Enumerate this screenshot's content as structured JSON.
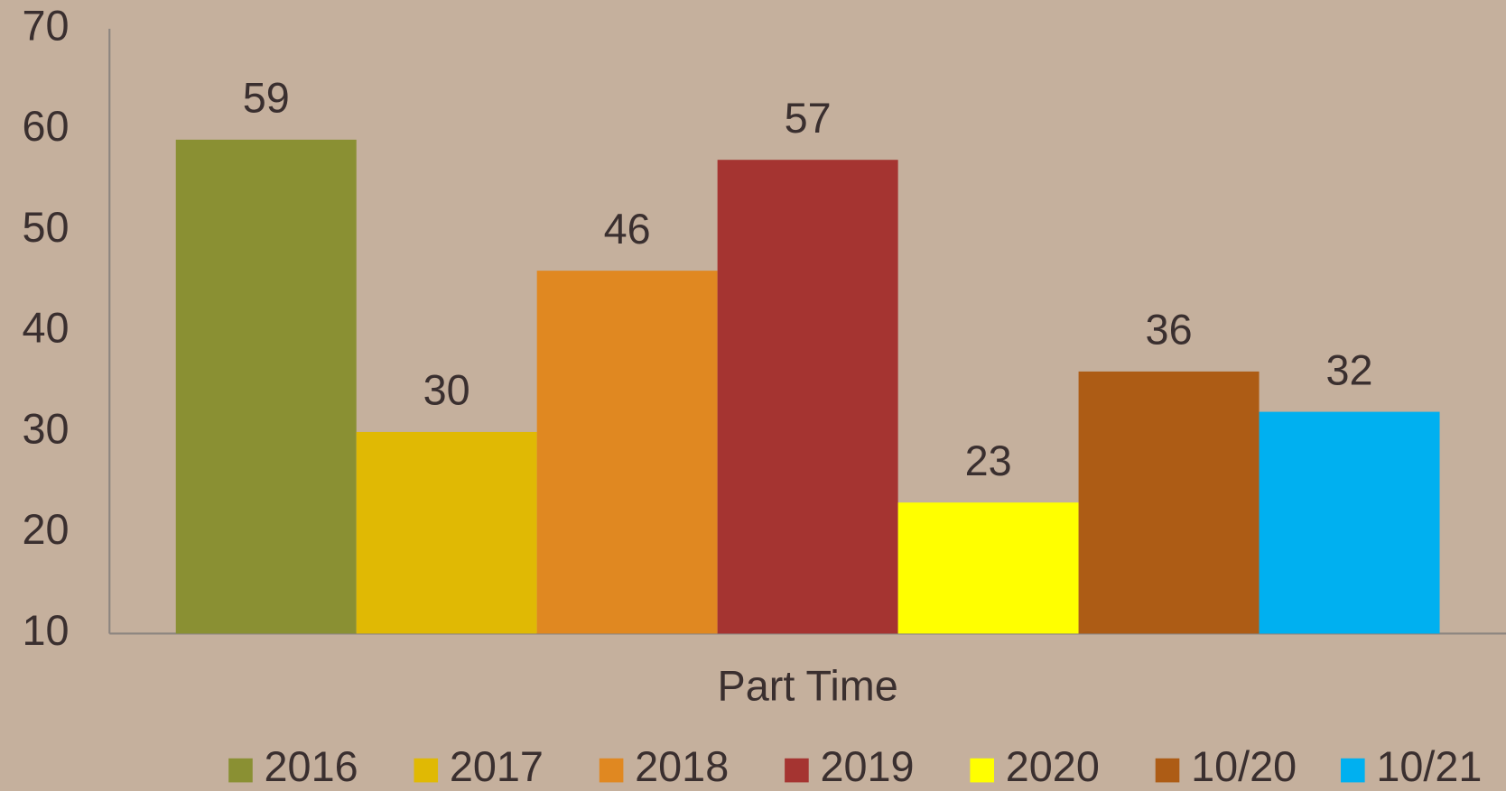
{
  "chart_data": {
    "type": "bar",
    "categories": [
      "Part Time"
    ],
    "series": [
      {
        "name": "2016",
        "color": "#8a9033",
        "values": [
          59
        ]
      },
      {
        "name": "2017",
        "color": "#e0b904",
        "values": [
          30
        ]
      },
      {
        "name": "2018",
        "color": "#e08821",
        "values": [
          46
        ]
      },
      {
        "name": "2019",
        "color": "#a53431",
        "values": [
          57
        ]
      },
      {
        "name": "2020",
        "color": "#ffff00",
        "values": [
          23
        ]
      },
      {
        "name": "10/20",
        "color": "#ad5c15",
        "values": [
          36
        ]
      },
      {
        "name": "10/21",
        "color": "#00b0f0",
        "values": [
          32
        ]
      }
    ],
    "ylim": [
      10,
      70
    ],
    "yticks": [
      10,
      20,
      30,
      40,
      50,
      60,
      70
    ],
    "grid": false,
    "legend": "bottom"
  }
}
